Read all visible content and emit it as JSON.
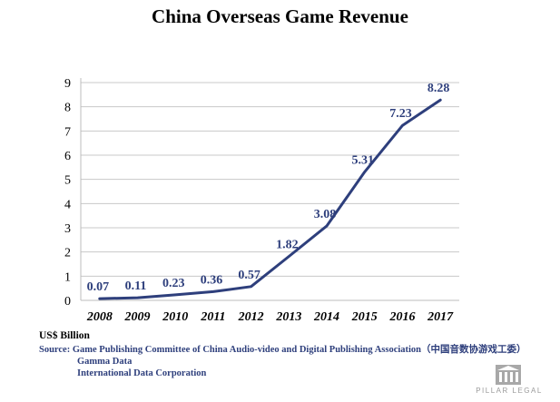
{
  "chart_data": {
    "type": "line",
    "title": "China Overseas Game Revenue",
    "x": [
      "2008",
      "2009",
      "2010",
      "2011",
      "2012",
      "2013",
      "2014",
      "2015",
      "2016",
      "2017"
    ],
    "series": [
      {
        "values": [
          0.07,
          0.11,
          0.23,
          0.36,
          0.57,
          1.82,
          3.08,
          5.31,
          7.23,
          8.28
        ]
      }
    ],
    "data_labels": [
      "0.07",
      "0.11",
      "0.23",
      "0.36",
      "0.57",
      "1.82",
      "3.08",
      "5.31",
      "7.23",
      "8.28"
    ],
    "y_ticks": [
      "0",
      "1",
      "2",
      "3",
      "4",
      "5",
      "6",
      "7",
      "8",
      "9"
    ],
    "ylim": [
      0,
      9
    ],
    "grid": true,
    "line_color": "#2e3f7c"
  },
  "unit_label": "US$ Billion",
  "source": {
    "line1": "Source: Game Publishing Committee of China Audio-video and Digital Publishing Association（中国音数协游戏工委）",
    "line2": "Gamma Data",
    "line3": "International Data Corporation"
  },
  "logo": {
    "text": "PILLAR LEGAL",
    "icon": "pillar-legal-logo-icon"
  }
}
